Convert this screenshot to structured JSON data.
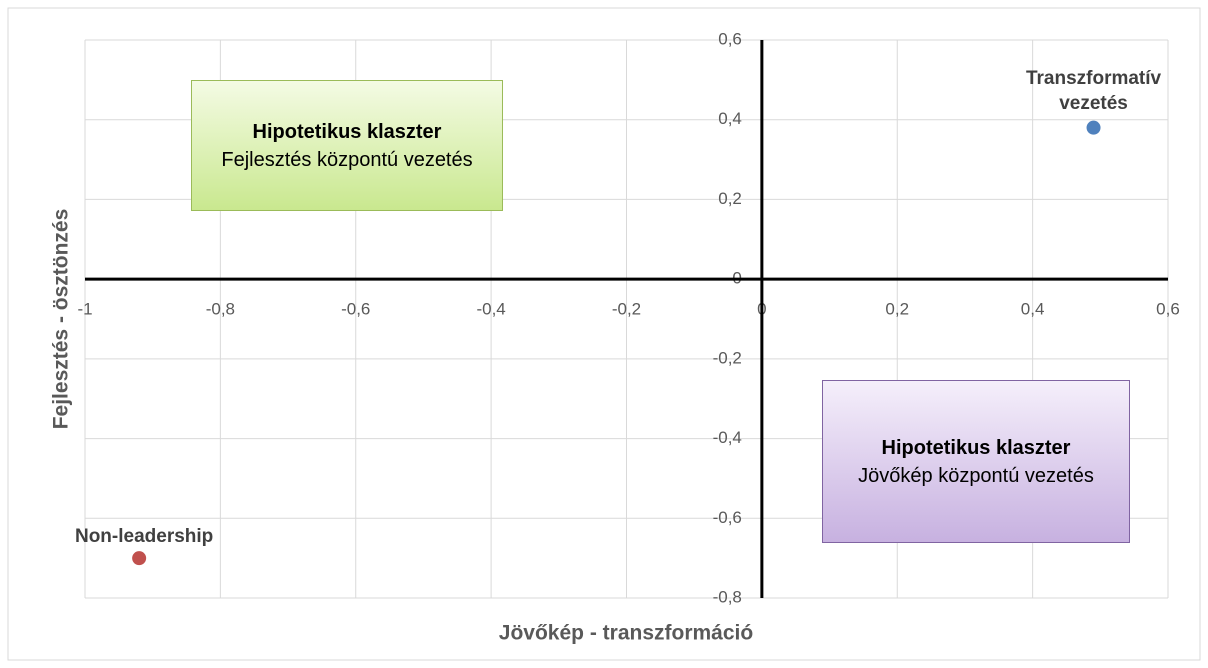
{
  "chart_data": {
    "type": "scatter",
    "xlabel": "Jövőkép - transzformáció",
    "ylabel": "Fejlesztés - ösztönzés",
    "xlim": [
      -1,
      0.6
    ],
    "ylim": [
      -0.8,
      0.6
    ],
    "xticks": [
      -1,
      {
        "value": -0.8,
        "label": "-0,8"
      },
      {
        "value": -0.6,
        "label": "-0,6"
      },
      {
        "value": -0.4,
        "label": "-0,4"
      },
      {
        "value": -0.2,
        "label": "-0,2"
      },
      0,
      {
        "value": 0.2,
        "label": "0,2"
      },
      {
        "value": 0.4,
        "label": "0,4"
      },
      {
        "value": 0.6,
        "label": "0,6"
      }
    ],
    "yticks": [
      {
        "value": -0.8,
        "label": "-0,8"
      },
      {
        "value": -0.6,
        "label": "-0,6"
      },
      {
        "value": -0.4,
        "label": "-0,4"
      },
      {
        "value": -0.2,
        "label": "-0,2"
      },
      0,
      {
        "value": 0.2,
        "label": "0,2"
      },
      {
        "value": 0.4,
        "label": "0,4"
      },
      {
        "value": 0.6,
        "label": "0,6"
      }
    ],
    "grid": true,
    "series": [
      {
        "name": "Transzformatív vezetés",
        "color": "#4f81bd",
        "x": [
          0.49
        ],
        "values": [
          0.38
        ]
      },
      {
        "name": "Non-leadership",
        "color": "#c0504d",
        "x": [
          -0.92
        ],
        "values": [
          -0.7
        ]
      }
    ],
    "annotations": [
      {
        "title": "Hipotetikus klaszter",
        "text": "Fejlesztés központú vezetés"
      },
      {
        "title": "Hipotetikus klaszter",
        "text": "Jövőkép központú vezetés"
      }
    ]
  }
}
